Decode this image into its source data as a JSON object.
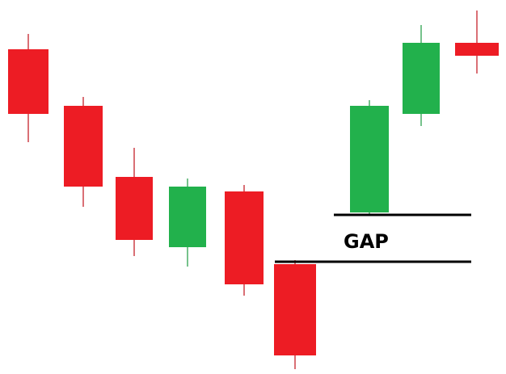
{
  "chart_data": {
    "type": "candlestick",
    "title": "",
    "xlabel": "",
    "ylabel": "",
    "grid": false,
    "legend": "none",
    "ylim": [
      0,
      463
    ],
    "candles": [
      {
        "open": 402,
        "high": 421,
        "low": 287,
        "close": 322,
        "direction": "down"
      },
      {
        "open": 332,
        "high": 343,
        "low": 207,
        "close": 232,
        "direction": "down"
      },
      {
        "open": 244,
        "high": 280,
        "low": 146,
        "close": 166,
        "direction": "down"
      },
      {
        "open": 157,
        "high": 242,
        "low": 133,
        "close": 232,
        "direction": "up"
      },
      {
        "open": 226,
        "high": 234,
        "low": 97,
        "close": 111,
        "direction": "down"
      },
      {
        "open": 136,
        "high": 141,
        "low": 6,
        "close": 23,
        "direction": "down"
      },
      {
        "open": 200,
        "high": 339,
        "low": 198,
        "close": 332,
        "direction": "up"
      },
      {
        "open": 322,
        "high": 432,
        "low": 307,
        "close": 410,
        "direction": "up"
      },
      {
        "open": 410,
        "high": 450,
        "low": 372,
        "close": 394,
        "direction": "down"
      }
    ],
    "gap": {
      "label": "GAP",
      "upper": 197,
      "lower": 139
    }
  },
  "colors": {
    "down": "#ed1c24",
    "up": "#22b14c",
    "wick_down": "#c0101a",
    "wick_up": "#1a9a40",
    "gap_line": "#000000"
  }
}
